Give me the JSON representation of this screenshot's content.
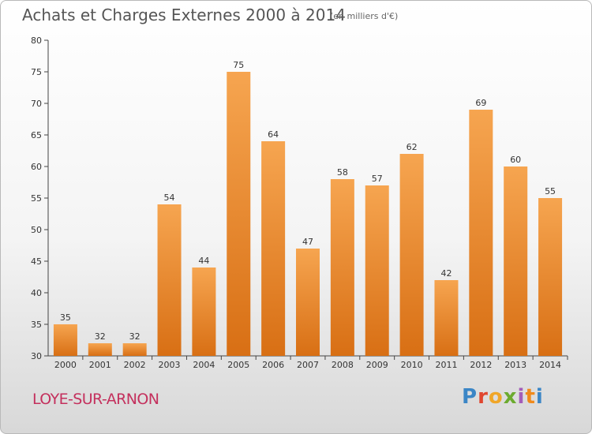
{
  "header": {
    "title": "Achats et Charges Externes 2000 à 2014",
    "subtitle": "(en milliers d'€)"
  },
  "footer": {
    "commune": "LOYE-SUR-ARNON",
    "logo": "Proxiti"
  },
  "colors": {
    "bar_light": "#f6a550",
    "bar_dark": "#d86f14",
    "frame_border": "#b9b9b9",
    "commune": "#c4305d"
  },
  "chart_data": {
    "type": "bar",
    "title": "Achats et Charges Externes 2000 à 2014",
    "subtitle": "(en milliers d'€)",
    "xlabel": "",
    "ylabel": "",
    "categories": [
      "2000",
      "2001",
      "2002",
      "2003",
      "2004",
      "2005",
      "2006",
      "2007",
      "2008",
      "2009",
      "2010",
      "2011",
      "2012",
      "2013",
      "2014"
    ],
    "values": [
      35,
      32,
      32,
      54,
      44,
      75,
      64,
      47,
      58,
      57,
      62,
      42,
      69,
      60,
      55
    ],
    "ylim": [
      30,
      80
    ],
    "yticks": [
      30,
      35,
      40,
      45,
      50,
      55,
      60,
      65,
      70,
      75,
      80
    ],
    "grid": false,
    "legend": "none"
  }
}
